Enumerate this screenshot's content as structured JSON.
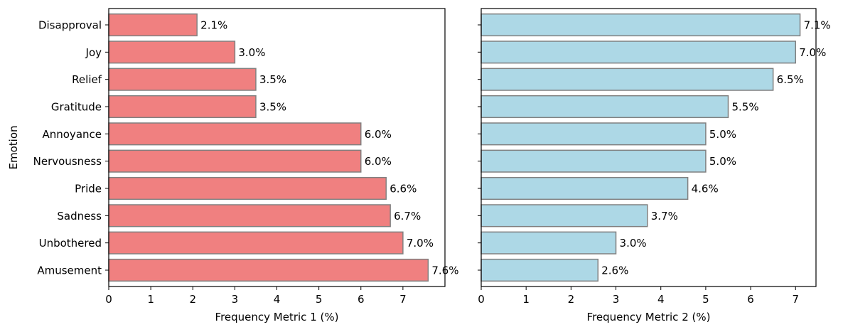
{
  "chart_data": [
    {
      "type": "bar",
      "orientation": "horizontal",
      "categories": [
        "Disapproval",
        "Joy",
        "Relief",
        "Gratitude",
        "Annoyance",
        "Nervousness",
        "Pride",
        "Sadness",
        "Unbothered",
        "Amusement"
      ],
      "values": [
        2.1,
        3.0,
        3.5,
        3.5,
        6.0,
        6.0,
        6.6,
        6.7,
        7.0,
        7.6
      ],
      "value_labels": [
        "2.1%",
        "3.0%",
        "3.5%",
        "3.5%",
        "6.0%",
        "6.0%",
        "6.6%",
        "6.7%",
        "7.0%",
        "7.6%"
      ],
      "xlabel": "Frequency Metric 1 (%)",
      "ylabel": "Emotion",
      "xlim": [
        0,
        8.0
      ],
      "xticks": [
        0,
        1,
        2,
        3,
        4,
        5,
        6,
        7
      ],
      "bar_color": "#f08080",
      "edge_color": "#808080",
      "grid": false
    },
    {
      "type": "bar",
      "orientation": "horizontal",
      "categories": [
        "Disapproval",
        "Joy",
        "Relief",
        "Gratitude",
        "Annoyance",
        "Nervousness",
        "Pride",
        "Sadness",
        "Unbothered",
        "Amusement"
      ],
      "values": [
        7.1,
        7.0,
        6.5,
        5.5,
        5.0,
        5.0,
        4.6,
        3.7,
        3.0,
        2.6
      ],
      "value_labels": [
        "7.1%",
        "7.0%",
        "6.5%",
        "5.5%",
        "5.0%",
        "5.0%",
        "4.6%",
        "3.7%",
        "3.0%",
        "2.6%"
      ],
      "xlabel": "Frequency Metric 2 (%)",
      "ylabel": "",
      "xlim": [
        0,
        7.455
      ],
      "xticks": [
        0,
        1,
        2,
        3,
        4,
        5,
        6,
        7
      ],
      "bar_color": "#add8e6",
      "edge_color": "#808080",
      "grid": false
    }
  ]
}
